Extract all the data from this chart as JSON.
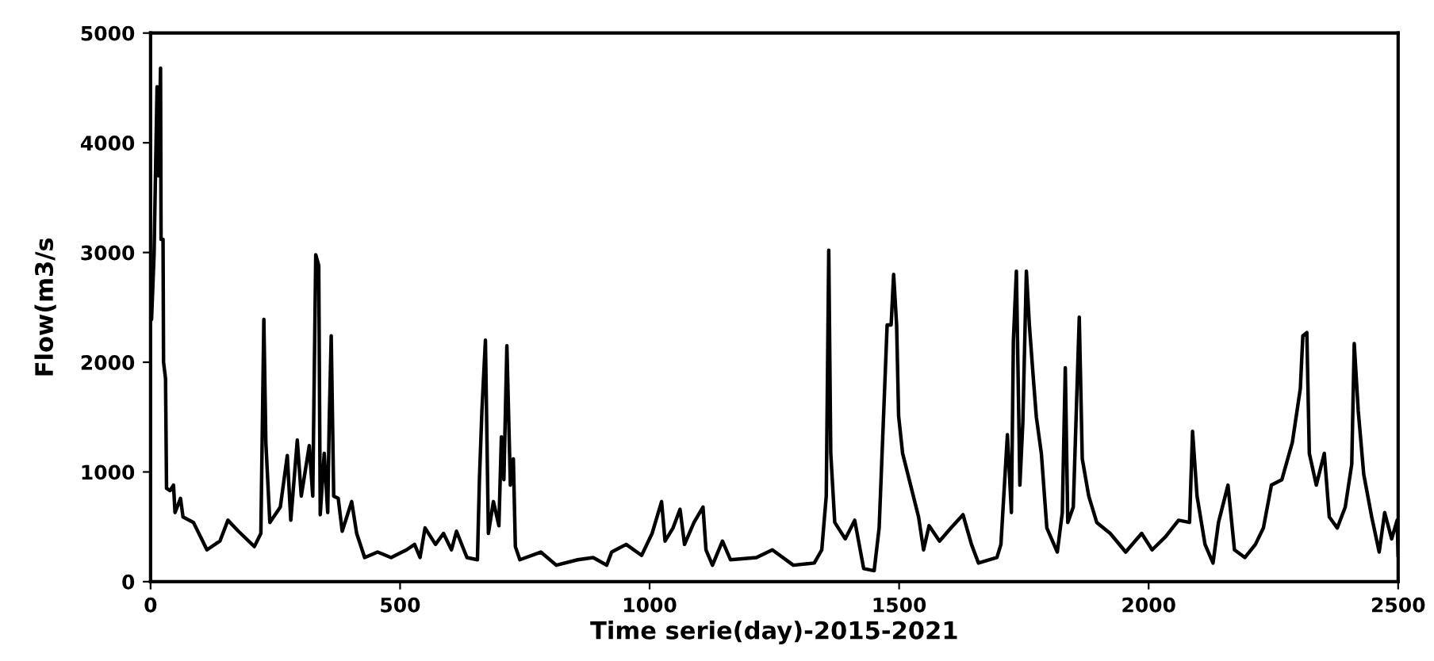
{
  "chart_data": {
    "type": "line",
    "xlabel": "Time serie(day)-2015-2021",
    "ylabel": "Flow(m3/s",
    "xlim": [
      0,
      2500
    ],
    "ylim": [
      0,
      5000
    ],
    "xticks": [
      0,
      500,
      1000,
      1500,
      2000,
      2500
    ],
    "yticks": [
      0,
      1000,
      2000,
      3000,
      4000,
      5000
    ],
    "grid": false,
    "marker": "none",
    "line_style": "solid",
    "series": [
      {
        "color": "#000000",
        "x": [
          0,
          2,
          7,
          13,
          16,
          20,
          21,
          25,
          26,
          30,
          32,
          39,
          46,
          49,
          60,
          65,
          86,
          113,
          139,
          155,
          176,
          208,
          221,
          227,
          231,
          239,
          260,
          274,
          281,
          294,
          302,
          318,
          325,
          331,
          337,
          340,
          348,
          355,
          358,
          362,
          367,
          376,
          384,
          403,
          413,
          429,
          455,
          482,
          513,
          529,
          540,
          550,
          571,
          587,
          603,
          613,
          634,
          655,
          659,
          664,
          671,
          677,
          687,
          698,
          703,
          708,
          714,
          721,
          727,
          731,
          740,
          782,
          813,
          856,
          887,
          914,
          924,
          953,
          984,
          1005,
          1024,
          1031,
          1047,
          1061,
          1070,
          1089,
          1107,
          1113,
          1126,
          1146,
          1162,
          1214,
          1246,
          1288,
          1330,
          1345,
          1354,
          1359,
          1363,
          1371,
          1392,
          1411,
          1429,
          1450,
          1460,
          1476,
          1484,
          1489,
          1495,
          1499,
          1507,
          1523,
          1539,
          1549,
          1560,
          1581,
          1604,
          1628,
          1645,
          1659,
          1696,
          1704,
          1717,
          1725,
          1729,
          1735,
          1742,
          1748,
          1755,
          1761,
          1769,
          1775,
          1785,
          1796,
          1817,
          1827,
          1833,
          1838,
          1849,
          1861,
          1867,
          1880,
          1896,
          1923,
          1954,
          1986,
          2007,
          2034,
          2060,
          2082,
          2088,
          2097,
          2113,
          2129,
          2140,
          2159,
          2172,
          2193,
          2214,
          2230,
          2246,
          2267,
          2288,
          2304,
          2309,
          2317,
          2322,
          2336,
          2352,
          2362,
          2378,
          2394,
          2407,
          2412,
          2420,
          2431,
          2447,
          2462,
          2473,
          2487,
          2498,
          2500
        ],
        "values": [
          2400,
          2390,
          2980,
          4510,
          3700,
          4680,
          3120,
          3120,
          2000,
          1850,
          850,
          830,
          880,
          630,
          760,
          590,
          540,
          290,
          370,
          560,
          460,
          320,
          440,
          2390,
          1270,
          540,
          680,
          1150,
          560,
          1290,
          780,
          1240,
          780,
          2980,
          2880,
          610,
          1170,
          630,
          1460,
          2240,
          780,
          760,
          460,
          730,
          440,
          220,
          270,
          220,
          290,
          340,
          220,
          490,
          340,
          440,
          290,
          460,
          220,
          200,
          930,
          1560,
          2200,
          440,
          730,
          510,
          1320,
          930,
          2150,
          880,
          1120,
          320,
          200,
          270,
          150,
          200,
          220,
          150,
          270,
          340,
          240,
          440,
          730,
          370,
          490,
          660,
          340,
          540,
          680,
          290,
          150,
          370,
          200,
          220,
          290,
          150,
          170,
          290,
          780,
          3020,
          1170,
          540,
          390,
          560,
          120,
          100,
          490,
          2340,
          2340,
          2800,
          2340,
          1510,
          1170,
          880,
          590,
          290,
          510,
          370,
          490,
          610,
          340,
          170,
          220,
          340,
          1340,
          630,
          2200,
          2830,
          880,
          1460,
          2830,
          2340,
          1850,
          1500,
          1170,
          490,
          270,
          630,
          1950,
          540,
          680,
          2410,
          1120,
          780,
          540,
          440,
          270,
          440,
          290,
          410,
          560,
          540,
          1370,
          780,
          340,
          170,
          540,
          880,
          290,
          220,
          340,
          490,
          880,
          930,
          1270,
          1760,
          2240,
          2270,
          1170,
          880,
          1170,
          590,
          490,
          680,
          1070,
          2170,
          1560,
          980,
          590,
          270,
          630,
          390,
          560,
          240
        ]
      }
    ]
  }
}
